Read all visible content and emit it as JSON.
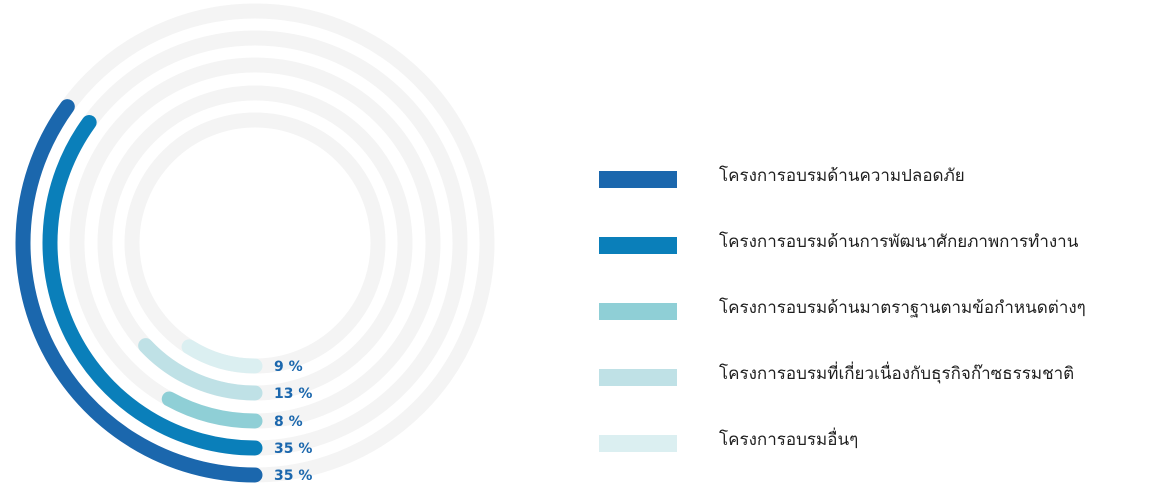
{
  "chart_data": {
    "type": "radial-bar",
    "max_value": 100,
    "track_color": "#f4f4f4",
    "series": [
      {
        "name": "โครงการอบรมด้านความปลอดภัย",
        "value": 35,
        "label": "35 %",
        "color": "#1b67ad"
      },
      {
        "name": "โครงการอบรมด้านการพัฒนาศักยภาพการทำงาน",
        "value": 35,
        "label": "35 %",
        "color": "#0a7fba"
      },
      {
        "name": "โครงการอบรมด้านมาตราฐานตามข้อกำหนดต่างๆ",
        "value": 8,
        "label": "8 %",
        "color": "#8fcfd6"
      },
      {
        "name": "โครงการอบรมที่เกี่ยวเนื่องกับธุรกิจก๊าซธรรมชาติ",
        "value": 13,
        "label": "13 %",
        "color": "#bfe1e6"
      },
      {
        "name": "โครงการอบรมอื่นๆ",
        "value": 9,
        "label": "9 %",
        "color": "#dbeff1"
      }
    ],
    "label_color": "#1b67ad",
    "legend_position": "right"
  }
}
